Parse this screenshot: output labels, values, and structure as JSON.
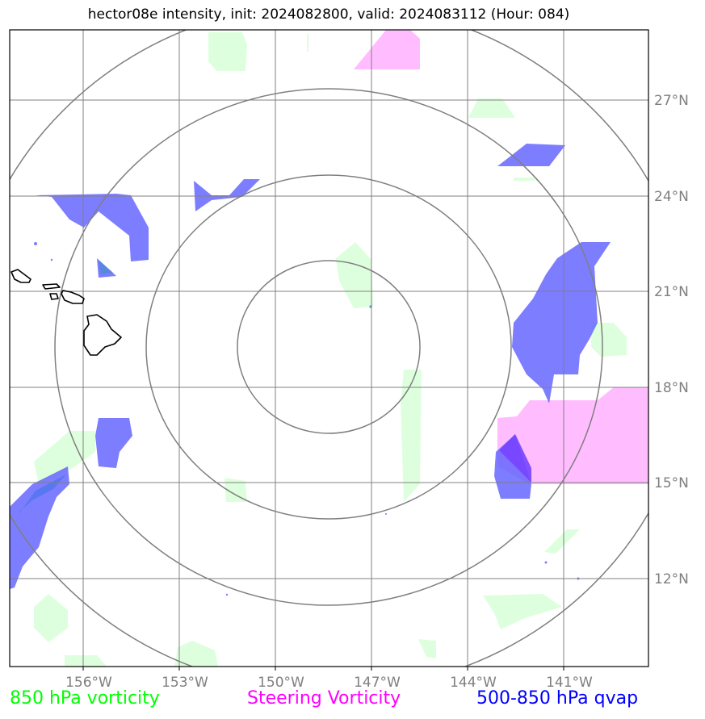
{
  "title": "hector08e intensity, init: 2024082800, valid: 2024083112 (Hour: 084)",
  "colors": {
    "vorticity": "#00ff00",
    "steering": "#ff00ff",
    "qvap": "#0000ff",
    "grid": "#808080",
    "tick_label": "#7f7f7f"
  },
  "axes": {
    "lon_ticks": [
      "156°W",
      "153°W",
      "150°W",
      "147°W",
      "144°W",
      "141°W"
    ],
    "lat_ticks": [
      "27°N",
      "24°N",
      "21°N",
      "18°N",
      "15°N",
      "12°N"
    ]
  },
  "legend": [
    {
      "label": "850 hPa vorticity",
      "color": "#00ff00"
    },
    {
      "label": "Steering Vorticity",
      "color": "#ff00ff"
    },
    {
      "label": "500-850 hPa qvap",
      "color": "#0000ff"
    }
  ]
}
